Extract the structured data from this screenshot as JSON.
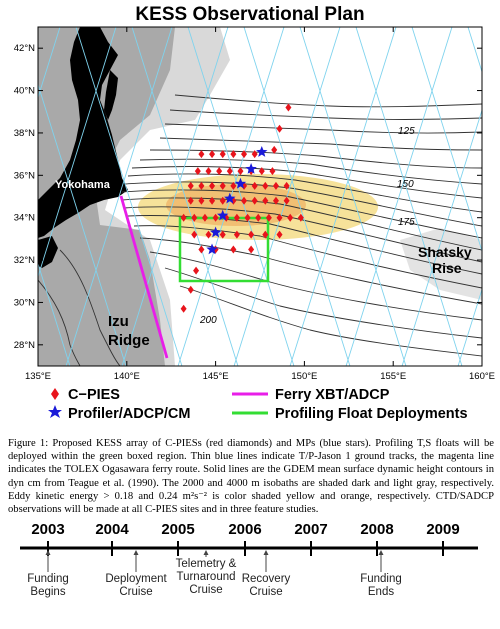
{
  "title": "KESS Observational Plan",
  "map": {
    "lon_ticks": [
      "135°E",
      "140°E",
      "145°E",
      "150°E",
      "155°E",
      "160°E"
    ],
    "lat_ticks": [
      "42°N",
      "40°N",
      "38°N",
      "36°N",
      "34°N",
      "32°N",
      "30°N",
      "28°N"
    ],
    "lon_range": [
      135,
      160
    ],
    "lat_range": [
      27,
      43
    ],
    "labels": {
      "yokohama": "Yokohama",
      "izu_ridge_1": "Izu",
      "izu_ridge_2": "Ridge",
      "shatsky_1": "Shatsky",
      "shatsky_2": "Rise"
    },
    "contour_labels": [
      "125",
      "150",
      "175",
      "200"
    ],
    "colors": {
      "cpies": "#e8141c",
      "profiler": "#1a1ad8",
      "ferry": "#e81ee8",
      "float_box": "#33dd33",
      "tracks": "#7fd3ee",
      "land": "#000000",
      "eke_yellow": "#f6e29a",
      "eke_orange": "#f1bf73"
    }
  },
  "legend": {
    "cpies": "C−PIES",
    "profiler": "Profiler/ADCP/CM",
    "ferry": "Ferry XBT/ADCP",
    "float": "Profiling Float Deployments"
  },
  "caption": "Figure 1: Proposed KESS array of C-PIESs (red diamonds) and MPs (blue stars). Profiling T,S floats will be deployed within the green boxed region. Thin blue lines indicate T/P-Jason 1 ground tracks, the magenta line indicates the TOLEX Ogasawara ferry route. Solid lines are the GDEM mean surface dynamic height contours in dyn cm from Teague et al. (1990). The 2000 and 4000 m isobaths are shaded dark and light gray, respectively. Eddy kinetic energy > 0.18 and 0.24 m²s⁻² is color shaded yellow and orange, respectively. CTD/SADCP observations will be made at all C-PIES sites and in three feature studies.",
  "timeline": {
    "years": [
      "2003",
      "2004",
      "2005",
      "2006",
      "2007",
      "2008",
      "2009"
    ],
    "events": [
      {
        "line1": "Funding",
        "line2": "Begins",
        "line3": ""
      },
      {
        "line1": "Deployment",
        "line2": "Cruise",
        "line3": ""
      },
      {
        "line1": "Telemetry &",
        "line2": "Turnaround",
        "line3": "Cruise"
      },
      {
        "line1": "Recovery",
        "line2": "Cruise",
        "line3": ""
      },
      {
        "line1": "Funding",
        "line2": "Ends",
        "line3": ""
      }
    ]
  }
}
